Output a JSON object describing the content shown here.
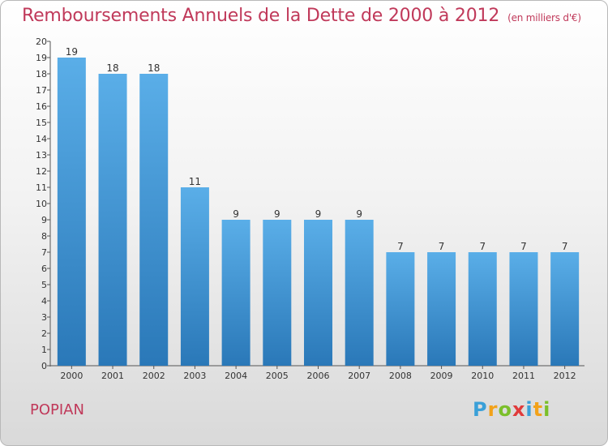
{
  "header": {
    "title": "Remboursements Annuels de la Dette de 2000 à 2012",
    "unit": "(en milliers d'€)"
  },
  "footer": {
    "commune": "POPIAN",
    "logo_letters": [
      "P",
      "r",
      "o",
      "x",
      "i",
      "t",
      "i"
    ],
    "logo_colors": [
      "#3aa0d8",
      "#f2a21a",
      "#7bbf2a",
      "#e03b3b",
      "#3aa0d8",
      "#f2a21a",
      "#7bbf2a"
    ]
  },
  "chart_data": {
    "type": "bar",
    "title": "Remboursements Annuels de la Dette de 2000 à 2012",
    "xlabel": "",
    "ylabel": "",
    "categories": [
      "2000",
      "2001",
      "2002",
      "2003",
      "2004",
      "2005",
      "2006",
      "2007",
      "2008",
      "2009",
      "2010",
      "2011",
      "2012"
    ],
    "values": [
      19,
      18,
      18,
      11,
      9,
      9,
      9,
      9,
      7,
      7,
      7,
      7,
      7
    ],
    "ylim": [
      0,
      20
    ],
    "yticks": [
      0,
      1,
      2,
      3,
      4,
      5,
      6,
      7,
      8,
      9,
      10,
      11,
      12,
      13,
      14,
      15,
      16,
      17,
      18,
      19,
      20
    ],
    "grid": false,
    "bar_color_top": "#5aaee8",
    "bar_color_bottom": "#2a78b8"
  }
}
